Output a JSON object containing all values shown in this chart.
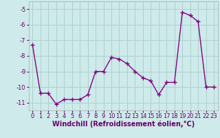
{
  "x": [
    0,
    1,
    2,
    3,
    4,
    5,
    6,
    7,
    8,
    9,
    10,
    11,
    12,
    13,
    14,
    15,
    16,
    17,
    18,
    19,
    20,
    21,
    22,
    23
  ],
  "y": [
    -7.3,
    -10.4,
    -10.4,
    -11.1,
    -10.8,
    -10.8,
    -10.8,
    -10.5,
    -9.0,
    -9.0,
    -8.1,
    -8.2,
    -8.5,
    -9.0,
    -9.4,
    -9.6,
    -10.5,
    -9.7,
    -9.7,
    -5.2,
    -5.4,
    -5.8,
    -10.0,
    -10.0
  ],
  "line_color": "#800080",
  "marker": "+",
  "marker_size": 4,
  "linewidth": 1.0,
  "xlabel": "Windchill (Refroidissement éolien,°C)",
  "xlabel_fontsize": 7,
  "ylim": [
    -11.5,
    -4.5
  ],
  "xlim": [
    -0.5,
    23.5
  ],
  "yticks": [
    -11,
    -10,
    -9,
    -8,
    -7,
    -6,
    -5
  ],
  "xticks": [
    0,
    1,
    2,
    3,
    4,
    5,
    6,
    7,
    8,
    9,
    10,
    11,
    12,
    13,
    14,
    15,
    16,
    17,
    18,
    19,
    20,
    21,
    22,
    23
  ],
  "background_color": "#ceeaea",
  "grid_color": "#aed0d0",
  "tick_fontsize": 6,
  "label_color": "#660066"
}
